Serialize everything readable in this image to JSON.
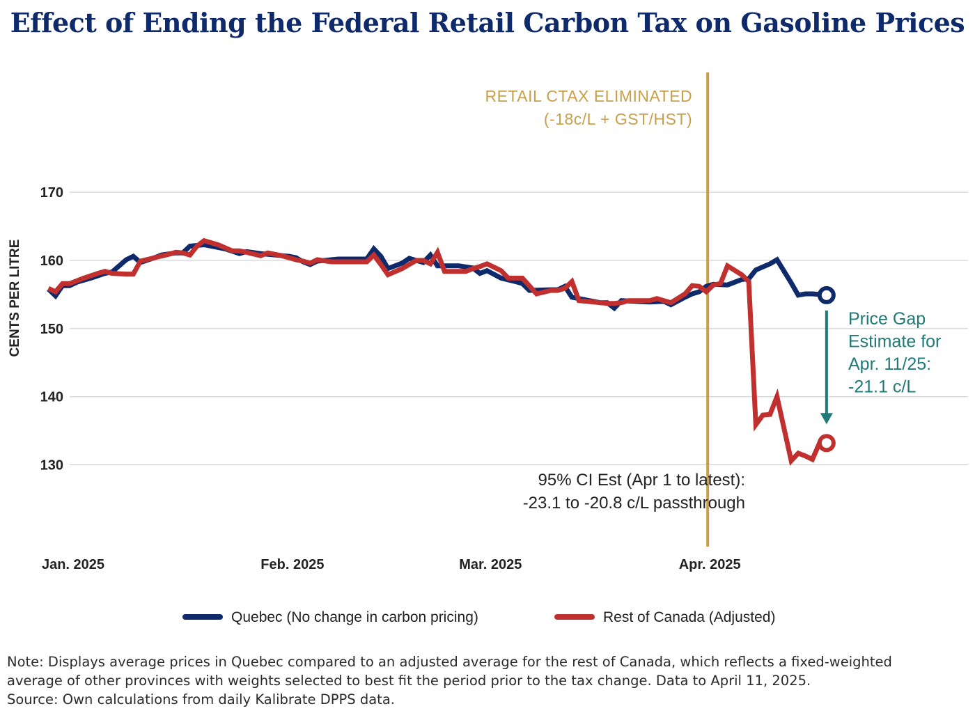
{
  "title": "Effect of Ending the Federal Retail Carbon Tax on Gasoline Prices",
  "chart_data": {
    "type": "line",
    "ylabel": "CENTS PER LITRE",
    "ylim": [
      118,
      188
    ],
    "yticks": [
      130,
      140,
      150,
      160,
      170
    ],
    "x_range": [
      "2025-01-01",
      "2025-05-08"
    ],
    "x_ticks": [
      {
        "date": "2025-01-01",
        "label": "Jan. 2025"
      },
      {
        "date": "2025-02-01",
        "label": "Feb. 2025"
      },
      {
        "date": "2025-03-01",
        "label": "Mar. 2025"
      },
      {
        "date": "2025-04-01",
        "label": "Apr. 2025"
      }
    ],
    "grid": "horizontal",
    "legend": "bottom",
    "series": [
      {
        "name": "Quebec (No change in carbon pricing)",
        "color": "#0e2a6b",
        "points": [
          [
            "2024-12-29",
            155.8
          ],
          [
            "2024-12-30",
            154.8
          ],
          [
            "2024-12-31",
            156.3
          ],
          [
            "2025-01-01",
            156.3
          ],
          [
            "2025-01-02",
            156.8
          ],
          [
            "2025-01-04",
            157.4
          ],
          [
            "2025-01-06",
            158.1
          ],
          [
            "2025-01-07",
            158.3
          ],
          [
            "2025-01-09",
            160.1
          ],
          [
            "2025-01-10",
            160.6
          ],
          [
            "2025-01-11",
            159.7
          ],
          [
            "2025-01-13",
            160.4
          ],
          [
            "2025-01-14",
            160.8
          ],
          [
            "2025-01-16",
            161.1
          ],
          [
            "2025-01-17",
            161.1
          ],
          [
            "2025-01-18",
            162.1
          ],
          [
            "2025-01-20",
            162.3
          ],
          [
            "2025-01-21",
            162.1
          ],
          [
            "2025-01-23",
            161.7
          ],
          [
            "2025-01-25",
            161.0
          ],
          [
            "2025-01-26",
            161.3
          ],
          [
            "2025-01-28",
            161.0
          ],
          [
            "2025-01-30",
            160.8
          ],
          [
            "2025-02-01",
            160.6
          ],
          [
            "2025-02-02",
            160.4
          ],
          [
            "2025-02-03",
            159.8
          ],
          [
            "2025-02-04",
            159.4
          ],
          [
            "2025-02-05",
            159.9
          ],
          [
            "2025-02-07",
            160.1
          ],
          [
            "2025-02-08",
            160.2
          ],
          [
            "2025-02-10",
            160.2
          ],
          [
            "2025-02-12",
            160.2
          ],
          [
            "2025-02-13",
            161.7
          ],
          [
            "2025-02-14",
            160.6
          ],
          [
            "2025-02-15",
            158.8
          ],
          [
            "2025-02-17",
            159.6
          ],
          [
            "2025-02-18",
            160.3
          ],
          [
            "2025-02-19",
            160.0
          ],
          [
            "2025-02-20",
            159.7
          ],
          [
            "2025-02-21",
            160.8
          ],
          [
            "2025-02-22",
            159.2
          ],
          [
            "2025-02-24",
            159.2
          ],
          [
            "2025-02-25",
            159.2
          ],
          [
            "2025-02-27",
            158.9
          ],
          [
            "2025-02-28",
            158.1
          ],
          [
            "2025-03-01",
            158.5
          ],
          [
            "2025-03-03",
            157.4
          ],
          [
            "2025-03-05",
            156.9
          ],
          [
            "2025-03-06",
            156.6
          ],
          [
            "2025-03-07",
            155.6
          ],
          [
            "2025-03-10",
            155.7
          ],
          [
            "2025-03-11",
            155.7
          ],
          [
            "2025-03-12",
            156.2
          ],
          [
            "2025-03-13",
            154.6
          ],
          [
            "2025-03-15",
            154.2
          ],
          [
            "2025-03-17",
            153.8
          ],
          [
            "2025-03-18",
            153.8
          ],
          [
            "2025-03-19",
            153.0
          ],
          [
            "2025-03-20",
            154.1
          ],
          [
            "2025-03-22",
            154.0
          ],
          [
            "2025-03-24",
            153.9
          ],
          [
            "2025-03-26",
            154.0
          ],
          [
            "2025-03-27",
            153.5
          ],
          [
            "2025-03-29",
            154.6
          ],
          [
            "2025-03-30",
            155.1
          ],
          [
            "2025-03-31",
            155.4
          ],
          [
            "2025-04-01",
            156.2
          ],
          [
            "2025-04-02",
            156.5
          ],
          [
            "2025-04-04",
            156.4
          ],
          [
            "2025-04-05",
            156.8
          ],
          [
            "2025-04-06",
            157.2
          ],
          [
            "2025-04-07",
            157.3
          ],
          [
            "2025-04-08",
            158.6
          ],
          [
            "2025-04-10",
            159.5
          ],
          [
            "2025-04-11",
            160.1
          ],
          [
            "2025-04-13",
            156.7
          ],
          [
            "2025-04-14",
            154.9
          ],
          [
            "2025-04-15",
            155.1
          ],
          [
            "2025-04-16",
            155.1
          ],
          [
            "2025-04-17",
            155.0
          ],
          [
            "2025-04-18",
            154.9
          ]
        ],
        "end_label_point": [
          "2025-04-18",
          154.9
        ]
      },
      {
        "name": "Rest of Canada (Adjusted)",
        "color": "#c0302f",
        "points": [
          [
            "2024-12-29",
            155.9
          ],
          [
            "2024-12-30",
            155.4
          ],
          [
            "2024-12-31",
            156.6
          ],
          [
            "2025-01-01",
            156.6
          ],
          [
            "2025-01-03",
            157.4
          ],
          [
            "2025-01-05",
            158.1
          ],
          [
            "2025-01-06",
            158.4
          ],
          [
            "2025-01-07",
            158.1
          ],
          [
            "2025-01-09",
            158.0
          ],
          [
            "2025-01-10",
            158.0
          ],
          [
            "2025-01-11",
            159.9
          ],
          [
            "2025-01-13",
            160.4
          ],
          [
            "2025-01-15",
            160.9
          ],
          [
            "2025-01-16",
            161.2
          ],
          [
            "2025-01-17",
            161.1
          ],
          [
            "2025-01-18",
            160.8
          ],
          [
            "2025-01-19",
            162.1
          ],
          [
            "2025-01-20",
            162.9
          ],
          [
            "2025-01-22",
            162.3
          ],
          [
            "2025-01-24",
            161.4
          ],
          [
            "2025-01-25",
            161.4
          ],
          [
            "2025-01-26",
            161.2
          ],
          [
            "2025-01-28",
            160.7
          ],
          [
            "2025-01-29",
            161.1
          ],
          [
            "2025-01-31",
            160.7
          ],
          [
            "2025-02-02",
            160.1
          ],
          [
            "2025-02-03",
            159.9
          ],
          [
            "2025-02-04",
            159.6
          ],
          [
            "2025-02-05",
            160.1
          ],
          [
            "2025-02-07",
            159.8
          ],
          [
            "2025-02-09",
            159.8
          ],
          [
            "2025-02-11",
            159.8
          ],
          [
            "2025-02-12",
            159.8
          ],
          [
            "2025-02-13",
            160.8
          ],
          [
            "2025-02-14",
            159.4
          ],
          [
            "2025-02-15",
            157.9
          ],
          [
            "2025-02-17",
            158.8
          ],
          [
            "2025-02-19",
            160.0
          ],
          [
            "2025-02-20",
            160.0
          ],
          [
            "2025-02-21",
            159.5
          ],
          [
            "2025-02-22",
            161.2
          ],
          [
            "2025-02-23",
            158.4
          ],
          [
            "2025-02-25",
            158.4
          ],
          [
            "2025-02-26",
            158.4
          ],
          [
            "2025-02-27",
            158.8
          ],
          [
            "2025-02-28",
            159.1
          ],
          [
            "2025-03-01",
            159.5
          ],
          [
            "2025-03-03",
            158.5
          ],
          [
            "2025-03-04",
            157.4
          ],
          [
            "2025-03-06",
            157.4
          ],
          [
            "2025-03-08",
            155.1
          ],
          [
            "2025-03-10",
            155.6
          ],
          [
            "2025-03-11",
            155.6
          ],
          [
            "2025-03-12",
            155.9
          ],
          [
            "2025-03-13",
            156.9
          ],
          [
            "2025-03-14",
            154.1
          ],
          [
            "2025-03-16",
            153.9
          ],
          [
            "2025-03-18",
            153.7
          ],
          [
            "2025-03-19",
            153.7
          ],
          [
            "2025-03-20",
            153.8
          ],
          [
            "2025-03-21",
            154.1
          ],
          [
            "2025-03-23",
            154.1
          ],
          [
            "2025-03-24",
            154.1
          ],
          [
            "2025-03-25",
            154.4
          ],
          [
            "2025-03-27",
            153.8
          ],
          [
            "2025-03-29",
            155.1
          ],
          [
            "2025-03-30",
            156.3
          ],
          [
            "2025-03-31",
            156.2
          ],
          [
            "2025-04-01",
            155.4
          ],
          [
            "2025-04-02",
            156.4
          ],
          [
            "2025-04-03",
            156.6
          ],
          [
            "2025-04-04",
            159.2
          ],
          [
            "2025-04-06",
            157.9
          ],
          [
            "2025-04-07",
            156.9
          ],
          [
            "2025-04-08",
            135.9
          ],
          [
            "2025-04-09",
            137.3
          ],
          [
            "2025-04-10",
            137.4
          ],
          [
            "2025-04-11",
            140.0
          ],
          [
            "2025-04-13",
            130.6
          ],
          [
            "2025-04-14",
            131.7
          ],
          [
            "2025-04-15",
            131.3
          ],
          [
            "2025-04-16",
            130.8
          ],
          [
            "2025-04-17",
            133.2
          ],
          [
            "2025-04-18",
            133.2
          ]
        ],
        "end_label_point": [
          "2025-04-18",
          133.2
        ]
      }
    ],
    "event_line": {
      "date": "2025-04-01",
      "color": "#c9a04a",
      "label_lines": [
        "RETAIL CTAX ELIMINATED",
        "(-18c/L + GST/HST)"
      ]
    },
    "gap_annotation": {
      "color": "#1f7a78",
      "from": 154.9,
      "to": 133.2,
      "lines": [
        "Price Gap",
        "Estimate for",
        "Apr. 11/25:",
        "-21.1 c/L"
      ]
    },
    "ci_annotation": {
      "lines": [
        "95% CI Est (Apr 1 to latest):",
        "-23.1 to -20.8 c/L passthrough"
      ]
    }
  },
  "notes": [
    "Note: Displays average prices in Quebec compared to an adjusted average for the rest of Canada, which reflects a fixed-weighted",
    "average of other provinces with weights selected to best fit the period prior to the tax change. Data to April 11, 2025.",
    "Source: Own calculations from daily Kalibrate DPPS data."
  ]
}
